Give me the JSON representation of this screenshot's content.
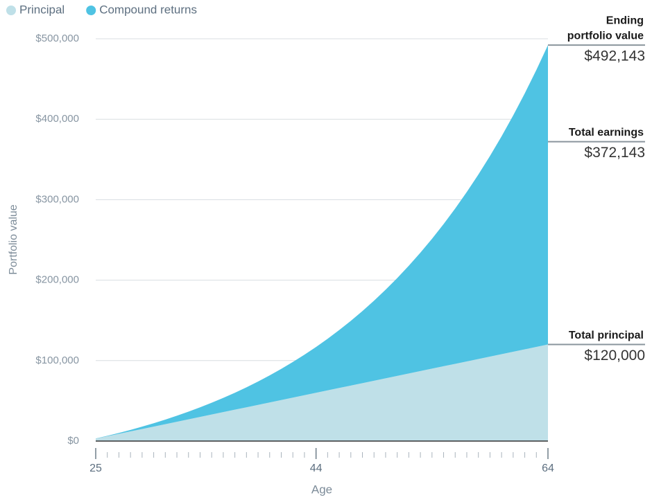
{
  "chart_data": {
    "type": "stacked-area",
    "x": [
      25,
      26,
      27,
      28,
      29,
      30,
      31,
      32,
      33,
      34,
      35,
      36,
      37,
      38,
      39,
      40,
      41,
      42,
      43,
      44,
      45,
      46,
      47,
      48,
      49,
      50,
      51,
      52,
      53,
      54,
      55,
      56,
      57,
      58,
      59,
      60,
      61,
      62,
      63,
      64
    ],
    "series": [
      {
        "name": "Principal",
        "color": "#bfe0e8",
        "values": [
          3000,
          6000,
          9000,
          12000,
          15000,
          18000,
          21000,
          24000,
          27000,
          30000,
          33000,
          36000,
          39000,
          42000,
          45000,
          48000,
          51000,
          54000,
          57000,
          60000,
          63000,
          66000,
          69000,
          72000,
          75000,
          78000,
          81000,
          84000,
          87000,
          90000,
          93000,
          96000,
          99000,
          102000,
          105000,
          108000,
          111000,
          114000,
          117000,
          120000
        ]
      },
      {
        "name": "Compound returns",
        "color": "#4fc3e3",
        "values": [
          180,
          551,
          1124,
          1911,
          2926,
          4182,
          5692,
          7474,
          9542,
          11915,
          14610,
          17646,
          21045,
          24828,
          29018,
          33639,
          38717,
          44280,
          50357,
          56978,
          64177,
          71987,
          80447,
          89594,
          99469,
          110117,
          121584,
          133919,
          147175,
          161405,
          176669,
          193030,
          210551,
          229304,
          249363,
          270804,
          293713,
          318175,
          344286,
          372143
        ]
      }
    ],
    "xlim": [
      25,
      64
    ],
    "xticks": [
      25,
      44,
      64
    ],
    "ylim": [
      0,
      500000
    ],
    "yticks": [
      {
        "value": 0,
        "label": "$0"
      },
      {
        "value": 100000,
        "label": "$100,000"
      },
      {
        "value": 200000,
        "label": "$200,000"
      },
      {
        "value": 300000,
        "label": "$300,000"
      },
      {
        "value": 400000,
        "label": "$400,000"
      },
      {
        "value": 500000,
        "label": "$500,000"
      }
    ],
    "grid": true,
    "x_label": "Age",
    "y_label": "Portfolio value",
    "annotations": [
      {
        "label_lines": [
          "Ending",
          "portfolio value"
        ],
        "value": 492143,
        "value_label": "$492,143"
      },
      {
        "label_lines": [
          "Total earnings"
        ],
        "value": 372143,
        "value_label": "$372,143"
      },
      {
        "label_lines": [
          "Total principal"
        ],
        "value": 120000,
        "value_label": "$120,000"
      }
    ]
  }
}
